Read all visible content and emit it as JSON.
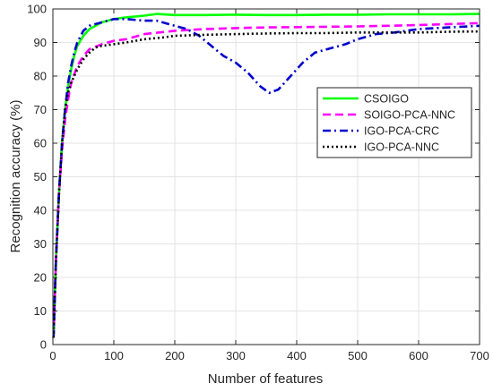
{
  "chart_data": {
    "type": "line",
    "title": "",
    "xlabel": "Number of features",
    "ylabel": "Recognition accuracy (%)",
    "xlim": [
      0,
      700
    ],
    "ylim": [
      0,
      100
    ],
    "xticks": [
      0,
      100,
      200,
      300,
      400,
      500,
      600,
      700
    ],
    "yticks": [
      0,
      10,
      20,
      30,
      40,
      50,
      60,
      70,
      80,
      90,
      100
    ],
    "grid": true,
    "legend_position": "center-right",
    "series": [
      {
        "name": "CSOIGO",
        "color": "#00ff00",
        "dash": "solid",
        "x": [
          1,
          5,
          10,
          15,
          20,
          25,
          30,
          35,
          40,
          50,
          60,
          80,
          100,
          120,
          150,
          170,
          200,
          250,
          300,
          350,
          400,
          450,
          500,
          550,
          600,
          650,
          700
        ],
        "y": [
          2,
          25,
          45,
          60,
          70,
          77,
          82,
          86,
          89,
          92,
          94,
          96,
          97,
          97.5,
          98,
          98.5,
          98.2,
          98.2,
          98.3,
          98.2,
          98.2,
          98.3,
          98.3,
          98.4,
          98.4,
          98.4,
          98.5
        ]
      },
      {
        "name": "SOIGO-PCA-NNC",
        "color": "#ff00ff",
        "dash": "dashed",
        "x": [
          1,
          5,
          10,
          15,
          20,
          25,
          30,
          40,
          50,
          60,
          80,
          100,
          120,
          150,
          200,
          250,
          300,
          350,
          400,
          450,
          500,
          550,
          600,
          650,
          700
        ],
        "y": [
          2,
          25,
          45,
          58,
          67,
          73,
          78,
          83,
          86,
          88,
          89.5,
          90.5,
          91,
          92.5,
          93.5,
          94,
          94.3,
          94.5,
          94.6,
          94.7,
          94.8,
          95,
          95.2,
          95.5,
          95.8
        ]
      },
      {
        "name": "IGO-PCA-CRC",
        "color": "#0000cc",
        "dash": "dashdot",
        "x": [
          1,
          5,
          10,
          15,
          20,
          25,
          30,
          35,
          40,
          50,
          60,
          70,
          80,
          100,
          120,
          150,
          170,
          200,
          220,
          240,
          260,
          280,
          300,
          320,
          340,
          355,
          370,
          390,
          410,
          430,
          450,
          480,
          500,
          530,
          560,
          600,
          650,
          700
        ],
        "y": [
          2,
          25,
          45,
          60,
          70,
          78,
          83,
          87,
          90,
          93.5,
          95,
          95.5,
          96,
          97,
          97,
          96.5,
          96.5,
          95,
          94,
          92,
          89,
          86,
          84,
          81,
          77,
          75,
          76,
          80,
          84,
          87,
          88,
          89.5,
          91,
          92.5,
          93,
          94,
          94.5,
          95
        ]
      },
      {
        "name": "IGO-PCA-NNC",
        "color": "#000000",
        "dash": "dotted",
        "x": [
          1,
          5,
          10,
          15,
          20,
          25,
          30,
          40,
          50,
          60,
          70,
          80,
          100,
          120,
          150,
          180,
          200,
          250,
          300,
          350,
          400,
          450,
          500,
          550,
          600,
          650,
          700
        ],
        "y": [
          2,
          25,
          45,
          60,
          70,
          75,
          78,
          82,
          85,
          87,
          88.5,
          89,
          89.5,
          90,
          91,
          91.5,
          92,
          92.3,
          92.5,
          92.7,
          92.8,
          92.8,
          93,
          93,
          93,
          93.2,
          93.3
        ]
      }
    ]
  }
}
